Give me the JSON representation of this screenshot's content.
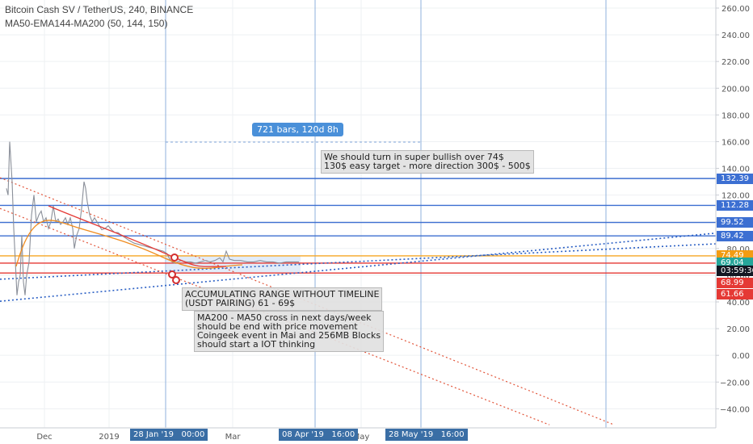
{
  "header": {
    "symbol_line": "Bitcoin Cash SV / TetherUS, 240, BINANCE",
    "indicator_line": "MA50-EMA144-MA200 (50, 144, 150)"
  },
  "colors": {
    "blue_line": "#3d6fd1",
    "orange_line": "#f5a623",
    "red_line": "#e53935",
    "dotted_blue": "#2a5fc4",
    "dotted_red": "#e2553a",
    "range_fill": "#cfe0f5",
    "marker_red": "#d32f2f",
    "tag_blue": "#3c6fd2",
    "tag_orange": "#f39c12",
    "tag_green": "#26a69a",
    "tag_red": "#e53935",
    "tag_dark": "#131722"
  },
  "chart_data": {
    "type": "line",
    "y_axis": {
      "ticks": [
        "260.00",
        "240.00",
        "220.00",
        "200.00",
        "180.00",
        "160.00",
        "140.00",
        "120.00",
        "100.00",
        "80.00",
        "60.00",
        "40.00",
        "20.00",
        "0.00",
        "−20.00",
        "−40.00"
      ],
      "ylim": [
        -45,
        264
      ]
    },
    "x_axis": {
      "ticks": [
        "Dec",
        "2019",
        "Mar",
        "May"
      ]
    },
    "series": [
      {
        "values": [
          [
            8,
            125
          ],
          [
            10,
            120
          ],
          [
            12,
            160
          ],
          [
            13,
            150
          ],
          [
            15,
            130
          ],
          [
            17,
            95
          ],
          [
            19,
            70
          ],
          [
            21,
            45
          ],
          [
            23,
            55
          ],
          [
            25,
            60
          ],
          [
            27,
            90
          ],
          [
            29,
            55
          ],
          [
            31,
            45
          ],
          [
            33,
            60
          ],
          [
            36,
            70
          ],
          [
            39,
            105
          ],
          [
            42,
            120
          ],
          [
            45,
            100
          ],
          [
            48,
            105
          ],
          [
            51,
            108
          ],
          [
            54,
            100
          ],
          [
            57,
            103
          ],
          [
            60,
            95
          ],
          [
            63,
            100
          ],
          [
            66,
            112
          ],
          [
            69,
            100
          ],
          [
            72,
            102
          ],
          [
            75,
            98
          ],
          [
            78,
            100
          ],
          [
            81,
            103
          ],
          [
            84,
            98
          ],
          [
            87,
            103
          ],
          [
            90,
            95
          ],
          [
            92,
            80
          ],
          [
            95,
            90
          ],
          [
            98,
            95
          ],
          [
            101,
            110
          ],
          [
            104,
            130
          ],
          [
            106,
            125
          ],
          [
            108,
            115
          ],
          [
            111,
            105
          ],
          [
            114,
            100
          ],
          [
            117,
            103
          ],
          [
            120,
            100
          ],
          [
            123,
            97
          ],
          [
            126,
            94
          ],
          [
            130,
            95
          ],
          [
            134,
            97
          ],
          [
            138,
            94
          ],
          [
            142,
            92
          ],
          [
            146,
            92
          ],
          [
            150,
            90
          ],
          [
            155,
            88
          ],
          [
            160,
            86
          ],
          [
            166,
            84
          ],
          [
            172,
            83
          ],
          [
            178,
            82
          ],
          [
            184,
            81
          ],
          [
            190,
            80
          ],
          [
            196,
            79
          ],
          [
            202,
            78
          ],
          [
            207,
            76
          ],
          [
            210,
            72
          ],
          [
            213,
            70
          ],
          [
            216,
            69
          ],
          [
            220,
            70
          ],
          [
            224,
            71
          ],
          [
            230,
            70
          ],
          [
            236,
            70
          ],
          [
            242,
            69
          ],
          [
            248,
            70
          ],
          [
            254,
            71
          ],
          [
            260,
            70
          ],
          [
            266,
            71
          ],
          [
            272,
            73
          ],
          [
            276,
            70
          ],
          [
            280,
            78
          ],
          [
            284,
            72
          ],
          [
            290,
            71
          ],
          [
            298,
            71
          ],
          [
            306,
            70
          ],
          [
            314,
            70
          ],
          [
            322,
            71
          ],
          [
            330,
            70
          ],
          [
            338,
            70
          ],
          [
            346,
            69
          ],
          [
            354,
            70
          ],
          [
            362,
            70
          ],
          [
            370,
            70
          ]
        ]
      }
    ],
    "levels": [
      132.39,
      112.28,
      99.52,
      89.42,
      74.49,
      69.04,
      61.66
    ],
    "price_tags": [
      {
        "label": "132.39",
        "value": 132.39,
        "color": "#3c6fd2"
      },
      {
        "label": "112.28",
        "value": 112.28,
        "color": "#3c6fd2"
      },
      {
        "label": "99.52",
        "value": 99.52,
        "color": "#3c6fd2"
      },
      {
        "label": "89.42",
        "value": 89.42,
        "color": "#3c6fd2"
      },
      {
        "label": "74.49",
        "value": 74.49,
        "color": "#f39c12"
      },
      {
        "label": "69.04",
        "value": 69.04,
        "color": "#26a69a"
      },
      {
        "label": "03:59:36",
        "value": 63.4,
        "color": "#131722"
      },
      {
        "label": "68.99",
        "value": 54.4,
        "color": "#e53935"
      },
      {
        "label": "61.66",
        "value": 46.0,
        "color": "#e53935"
      }
    ],
    "time_labels": [
      "28 Jan '19   00:00",
      "08 Apr '19   16:00",
      "28 May '19   16:00"
    ]
  },
  "annotations": {
    "bars": "721 bars, 120d 8h",
    "note_bullish": [
      "We should turn in super bullish over 74$",
      "130$ easy target - more direction 300$ - 500$"
    ],
    "note_range": [
      "ACCUMULATING RANGE WITHOUT TIMELINE",
      "(USDT PAIRING) 61 - 69$"
    ],
    "note_cross": [
      "MA200 - MA50 cross in next days/week",
      "should be end with price movement",
      "Coingeek event in Mai and 256MB Blocks",
      "should start a IOT thinking"
    ]
  }
}
